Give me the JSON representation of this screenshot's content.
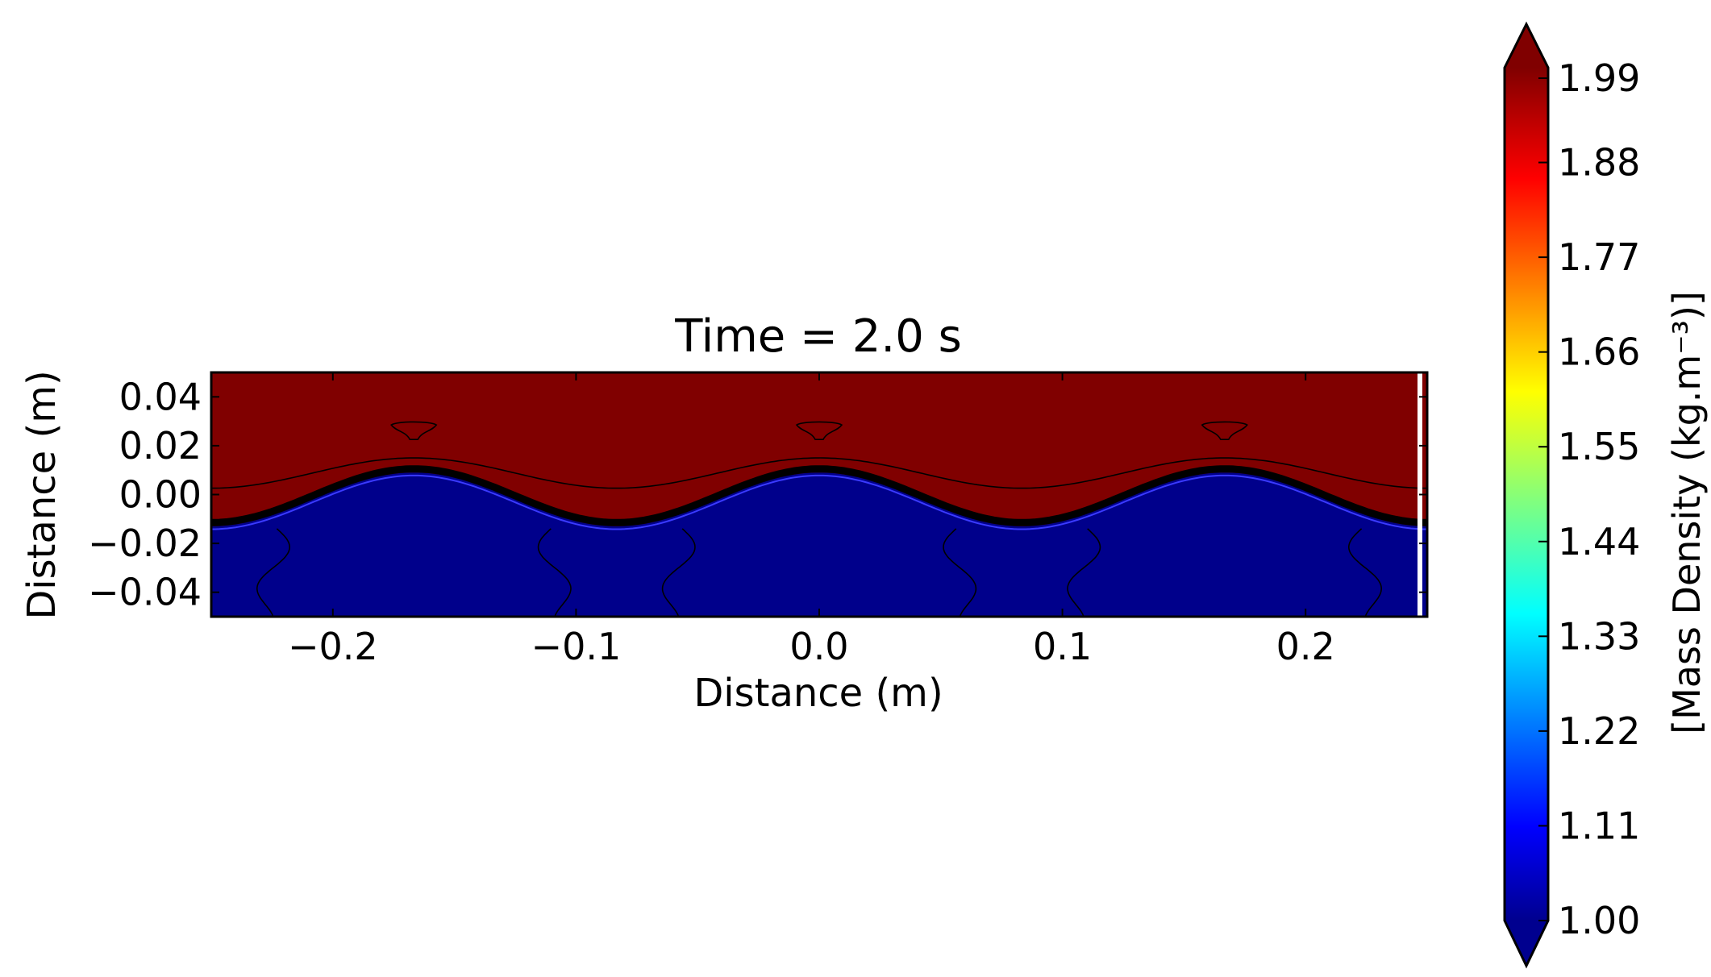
{
  "chart_data": {
    "type": "heatmap",
    "title": "Time = 2.0 s",
    "xlabel": "Distance (m)",
    "ylabel": "Distance (m)",
    "xlim": [
      -0.25,
      0.25
    ],
    "ylim": [
      -0.05,
      0.05
    ],
    "x_ticks": [
      -0.2,
      -0.1,
      0.0,
      0.1,
      0.2
    ],
    "x_tick_labels": [
      "−0.2",
      "−0.1",
      "0.0",
      "0.1",
      "0.2"
    ],
    "y_ticks": [
      0.04,
      0.02,
      0.0,
      -0.02,
      -0.04
    ],
    "y_tick_labels": [
      "0.04",
      "0.02",
      "0.00",
      "−0.02",
      "−0.04"
    ],
    "colormap": "jet",
    "colorbar": {
      "label": "[Mass Density (kg.m⁻³)]",
      "range": [
        1.0,
        1.99
      ],
      "tick_labels": [
        "1.00",
        "1.11",
        "1.22",
        "1.33",
        "1.44",
        "1.55",
        "1.66",
        "1.77",
        "1.88",
        "1.99"
      ],
      "extend": "both"
    },
    "field": {
      "upper_fluid_density": 1.99,
      "lower_fluid_density": 1.0,
      "interface": {
        "form": "cosine",
        "mean_y": -0.001,
        "amplitude": 0.011,
        "wavelength": 0.1667,
        "crest_x": [
          -0.1667,
          0.0,
          0.1667
        ],
        "trough_x": [
          -0.0833,
          0.0833
        ]
      }
    },
    "grid": false,
    "colors": {
      "upper": "#800000",
      "lower": "#00008b",
      "interface_band": "#000000",
      "contour": "#000000"
    }
  }
}
